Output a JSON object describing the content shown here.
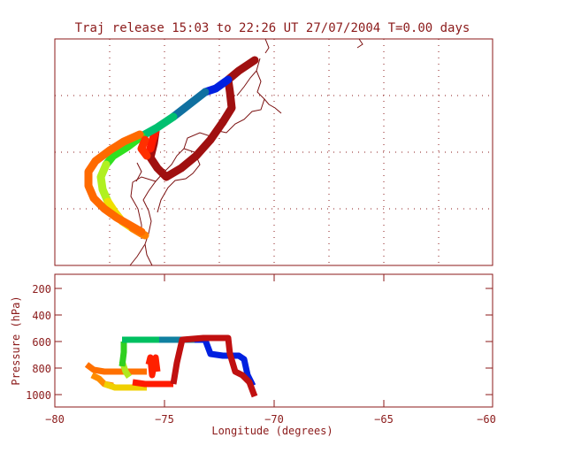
{
  "colors": {
    "frame": "#8b1a1a",
    "grid": "#8b1a1a",
    "coast": "#7a1010",
    "background": "#ffffff"
  },
  "chart_data": [
    {
      "type": "map-trajectory",
      "title": "Traj release 15:03 to 22:26 UT 27/07/2004    T=0.00 days",
      "grid": true,
      "colorscale": [
        "#8b0000",
        "#ff0000",
        "#ff7f00",
        "#ffff00",
        "#00ff00",
        "#00c080",
        "#1060a0",
        "#0000ff",
        "#8b0000"
      ]
    },
    {
      "type": "line",
      "xlabel": "Longitude  (degrees)",
      "ylabel": "Pressure  (hPa)",
      "xlim": [
        -80,
        -60
      ],
      "ylim": [
        1050,
        100
      ],
      "xticks": [
        "−80",
        "−75",
        "−70",
        "−65",
        "−60"
      ],
      "yticks": [
        "200",
        "400",
        "600",
        "800",
        "1000"
      ],
      "grid": false
    }
  ]
}
